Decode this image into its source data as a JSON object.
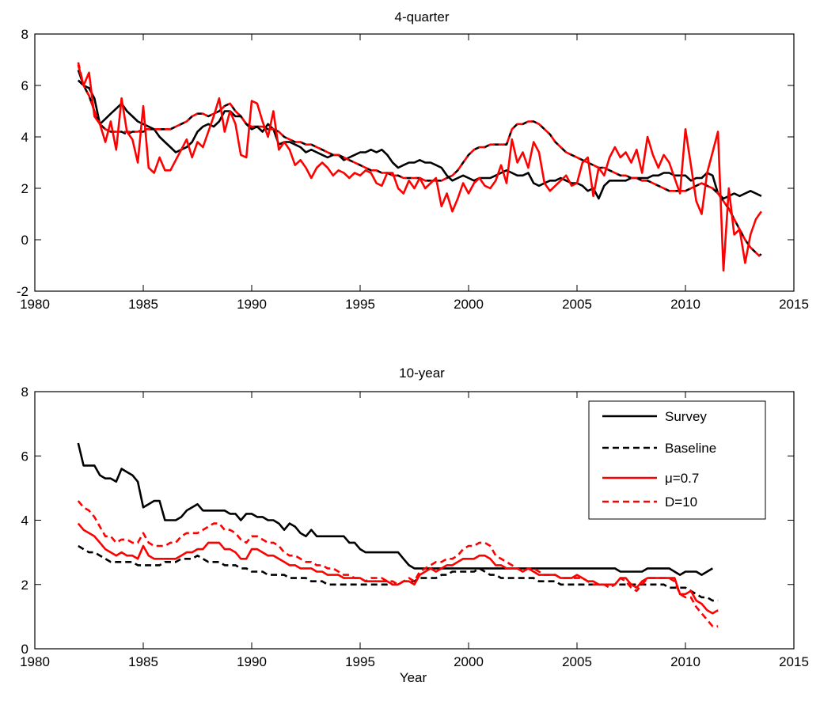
{
  "figure": {
    "xlabel": "Year"
  },
  "chart_data": [
    {
      "type": "line",
      "title": "4-quarter",
      "xlabel": "",
      "ylabel": "",
      "xlim": [
        1980,
        2015
      ],
      "ylim": [
        -2,
        8
      ],
      "xticks": [
        1980,
        1985,
        1990,
        1995,
        2000,
        2005,
        2010,
        2015
      ],
      "yticks": [
        -2,
        0,
        2,
        4,
        6,
        8
      ],
      "grid": false,
      "x_start": 1982.0,
      "x_step": 0.25,
      "series": [
        {
          "color": "#000000",
          "dash": "solid",
          "values": [
            6.6,
            6.0,
            5.9,
            5.5,
            4.5,
            4.7,
            4.9,
            5.1,
            5.3,
            5.0,
            4.8,
            4.6,
            4.5,
            4.4,
            4.3,
            4.0,
            3.8,
            3.6,
            3.4,
            3.5,
            3.6,
            3.8,
            4.2,
            4.4,
            4.5,
            4.4,
            4.6,
            5.0,
            5.0,
            4.8,
            4.8,
            4.5,
            4.3,
            4.4,
            4.2,
            4.5,
            4.3,
            3.7,
            3.8,
            3.8,
            3.7,
            3.6,
            3.4,
            3.5,
            3.4,
            3.3,
            3.2,
            3.3,
            3.3,
            3.1,
            3.2,
            3.3,
            3.4,
            3.4,
            3.5,
            3.4,
            3.5,
            3.3,
            3.0,
            2.8,
            2.9,
            3.0,
            3.0,
            3.1,
            3.0,
            3.0,
            2.9,
            2.8,
            2.5,
            2.3,
            2.4,
            2.5,
            2.4,
            2.3,
            2.4,
            2.4,
            2.4,
            2.5,
            2.6,
            2.7,
            2.6,
            2.5,
            2.5,
            2.6,
            2.2,
            2.1,
            2.2,
            2.3,
            2.3,
            2.4,
            2.3,
            2.2,
            2.2,
            2.1,
            1.9,
            2.0,
            1.6,
            2.1,
            2.3,
            2.3,
            2.3,
            2.3,
            2.4,
            2.4,
            2.4,
            2.4,
            2.5,
            2.5,
            2.6,
            2.6,
            2.5,
            2.5,
            2.5,
            2.3,
            2.4,
            2.4,
            2.6,
            2.5,
            1.8,
            1.6,
            1.7,
            1.8,
            1.7,
            1.8,
            1.9,
            1.8,
            1.7
          ]
        },
        {
          "color": "#000000",
          "dash": "dashed",
          "values": [
            6.2,
            6.0,
            5.6,
            5.0,
            4.5,
            4.3,
            4.2,
            4.2,
            4.2,
            4.1,
            4.2,
            4.2,
            4.2,
            4.3,
            4.3,
            4.3,
            4.3,
            4.3,
            4.4,
            4.5,
            4.6,
            4.8,
            4.9,
            4.9,
            4.8,
            4.9,
            5.0,
            5.2,
            5.3,
            5.0,
            4.8,
            4.5,
            4.4,
            4.4,
            4.4,
            4.3,
            4.3,
            4.2,
            4.0,
            3.9,
            3.8,
            3.8,
            3.7,
            3.7,
            3.6,
            3.5,
            3.4,
            3.3,
            3.3,
            3.2,
            3.1,
            3.0,
            2.9,
            2.8,
            2.7,
            2.7,
            2.6,
            2.6,
            2.5,
            2.5,
            2.4,
            2.4,
            2.4,
            2.4,
            2.3,
            2.3,
            2.3,
            2.3,
            2.4,
            2.5,
            2.7,
            3.0,
            3.3,
            3.5,
            3.6,
            3.6,
            3.7,
            3.7,
            3.7,
            3.7,
            4.3,
            4.5,
            4.5,
            4.6,
            4.6,
            4.5,
            4.3,
            4.1,
            3.8,
            3.6,
            3.4,
            3.3,
            3.2,
            3.1,
            3.0,
            2.9,
            2.8,
            2.8,
            2.7,
            2.6,
            2.5,
            2.5,
            2.4,
            2.4,
            2.3,
            2.3,
            2.2,
            2.1,
            2.0,
            1.9,
            1.9,
            1.9,
            1.9,
            2.0,
            2.1,
            2.2,
            2.1,
            2.0,
            1.8,
            1.5,
            1.2,
            0.8,
            0.4,
            0.0,
            -0.3,
            -0.5,
            -0.6
          ]
        },
        {
          "color": "#ff0000",
          "dash": "solid",
          "values": [
            6.8,
            6.0,
            6.5,
            4.8,
            4.5,
            3.8,
            4.6,
            3.5,
            5.5,
            4.2,
            3.9,
            3.0,
            5.2,
            2.8,
            2.6,
            3.2,
            2.7,
            2.7,
            3.1,
            3.5,
            3.9,
            3.2,
            3.8,
            3.6,
            4.2,
            4.8,
            5.5,
            4.2,
            5.0,
            4.5,
            3.3,
            3.2,
            5.4,
            5.3,
            4.6,
            4.0,
            5.0,
            3.5,
            3.8,
            3.5,
            2.9,
            3.1,
            2.8,
            2.4,
            2.8,
            3.0,
            2.8,
            2.5,
            2.7,
            2.6,
            2.4,
            2.6,
            2.5,
            2.7,
            2.6,
            2.2,
            2.1,
            2.6,
            2.6,
            2.0,
            1.8,
            2.3,
            2.0,
            2.4,
            2.0,
            2.2,
            2.4,
            1.3,
            1.8,
            1.1,
            1.6,
            2.2,
            1.8,
            2.2,
            2.4,
            2.1,
            2.0,
            2.3,
            2.9,
            2.2,
            3.9,
            3.0,
            3.4,
            2.8,
            3.8,
            3.4,
            2.2,
            1.9,
            2.1,
            2.3,
            2.5,
            2.1,
            2.2,
            3.0,
            3.2,
            1.7,
            2.8,
            2.5,
            3.2,
            3.6,
            3.2,
            3.4,
            3.0,
            3.5,
            2.6,
            4.0,
            3.3,
            2.8,
            3.3,
            3.0,
            2.4,
            1.8,
            4.3,
            2.9,
            1.5,
            1.0,
            2.6,
            3.4,
            4.2,
            -1.2,
            2.0,
            0.2,
            0.4,
            -0.9,
            0.2,
            0.8,
            1.1
          ]
        },
        {
          "color": "#ff0000",
          "dash": "dashed",
          "values": [
            6.9,
            6.0,
            5.6,
            5.0,
            4.5,
            4.3,
            4.2,
            4.2,
            4.2,
            4.2,
            4.2,
            4.2,
            4.3,
            4.3,
            4.3,
            4.3,
            4.3,
            4.3,
            4.4,
            4.5,
            4.6,
            4.8,
            4.9,
            4.9,
            4.8,
            4.9,
            5.0,
            5.2,
            5.3,
            5.0,
            4.8,
            4.5,
            4.4,
            4.4,
            4.4,
            4.3,
            4.3,
            4.2,
            4.0,
            3.9,
            3.8,
            3.8,
            3.7,
            3.7,
            3.6,
            3.5,
            3.4,
            3.3,
            3.3,
            3.2,
            3.1,
            3.0,
            2.9,
            2.8,
            2.7,
            2.7,
            2.6,
            2.6,
            2.5,
            2.5,
            2.4,
            2.4,
            2.4,
            2.4,
            2.3,
            2.3,
            2.3,
            2.3,
            2.4,
            2.5,
            2.7,
            3.0,
            3.3,
            3.5,
            3.6,
            3.6,
            3.7,
            3.7,
            3.7,
            3.7,
            4.3,
            4.5,
            4.5,
            4.6,
            4.6,
            4.5,
            4.3,
            4.1,
            3.8,
            3.6,
            3.4,
            3.3,
            3.2,
            3.1,
            3.0,
            2.9,
            2.8,
            2.8,
            2.7,
            2.6,
            2.5,
            2.5,
            2.4,
            2.4,
            2.3,
            2.3,
            2.2,
            2.1,
            2.0,
            1.9,
            1.9,
            1.9,
            1.9,
            2.0,
            2.1,
            2.2,
            2.1,
            2.0,
            1.8,
            1.5,
            1.2,
            0.8,
            0.4,
            0.0,
            -0.3,
            -0.5,
            -0.7
          ]
        }
      ]
    },
    {
      "type": "line",
      "title": "10-year",
      "xlabel": "Year",
      "ylabel": "",
      "xlim": [
        1980,
        2015
      ],
      "ylim": [
        0,
        8
      ],
      "xticks": [
        1980,
        1985,
        1990,
        1995,
        2000,
        2005,
        2010,
        2015
      ],
      "yticks": [
        0,
        2,
        4,
        6,
        8
      ],
      "grid": false,
      "legend_position": "top-right",
      "x_start": 1982.0,
      "x_step": 0.25,
      "series": [
        {
          "name": "Survey",
          "color": "#000000",
          "dash": "solid",
          "values": [
            6.4,
            5.7,
            5.7,
            5.7,
            5.4,
            5.3,
            5.3,
            5.2,
            5.6,
            5.5,
            5.4,
            5.2,
            4.4,
            4.5,
            4.6,
            4.6,
            4.0,
            4.0,
            4.0,
            4.1,
            4.3,
            4.4,
            4.5,
            4.3,
            4.3,
            4.3,
            4.3,
            4.3,
            4.2,
            4.2,
            4.0,
            4.2,
            4.2,
            4.1,
            4.1,
            4.0,
            4.0,
            3.9,
            3.7,
            3.9,
            3.8,
            3.6,
            3.5,
            3.7,
            3.5,
            3.5,
            3.5,
            3.5,
            3.5,
            3.5,
            3.3,
            3.3,
            3.1,
            3.0,
            3.0,
            3.0,
            3.0,
            3.0,
            3.0,
            3.0,
            2.8,
            2.6,
            2.5,
            2.5,
            2.5,
            2.5,
            2.5,
            2.5,
            2.5,
            2.5,
            2.5,
            2.5,
            2.5,
            2.5,
            2.5,
            2.5,
            2.5,
            2.5,
            2.5,
            2.5,
            2.5,
            2.5,
            2.5,
            2.5,
            2.5,
            2.5,
            2.5,
            2.5,
            2.5,
            2.5,
            2.5,
            2.5,
            2.5,
            2.5,
            2.5,
            2.5,
            2.5,
            2.5,
            2.5,
            2.5,
            2.4,
            2.4,
            2.4,
            2.4,
            2.4,
            2.5,
            2.5,
            2.5,
            2.5,
            2.5,
            2.4,
            2.3,
            2.4,
            2.4,
            2.4,
            2.3,
            2.4,
            2.5
          ]
        },
        {
          "name": "Baseline",
          "color": "#000000",
          "dash": "dashed",
          "values": [
            3.2,
            3.1,
            3.0,
            3.0,
            2.9,
            2.8,
            2.7,
            2.7,
            2.7,
            2.7,
            2.7,
            2.6,
            2.6,
            2.6,
            2.6,
            2.6,
            2.7,
            2.7,
            2.7,
            2.8,
            2.8,
            2.8,
            2.9,
            2.8,
            2.7,
            2.7,
            2.7,
            2.6,
            2.6,
            2.6,
            2.5,
            2.5,
            2.4,
            2.4,
            2.4,
            2.3,
            2.3,
            2.3,
            2.3,
            2.2,
            2.2,
            2.2,
            2.2,
            2.1,
            2.1,
            2.1,
            2.0,
            2.0,
            2.0,
            2.0,
            2.0,
            2.0,
            2.0,
            2.0,
            2.0,
            2.0,
            2.0,
            2.0,
            2.0,
            2.0,
            2.1,
            2.1,
            2.1,
            2.2,
            2.2,
            2.2,
            2.2,
            2.3,
            2.3,
            2.4,
            2.4,
            2.4,
            2.4,
            2.4,
            2.5,
            2.4,
            2.3,
            2.3,
            2.2,
            2.2,
            2.2,
            2.2,
            2.2,
            2.2,
            2.2,
            2.1,
            2.1,
            2.1,
            2.1,
            2.0,
            2.0,
            2.0,
            2.0,
            2.0,
            2.0,
            2.0,
            2.0,
            2.0,
            2.0,
            2.0,
            2.0,
            2.0,
            2.0,
            2.0,
            2.0,
            2.0,
            2.0,
            2.0,
            2.0,
            1.9,
            1.9,
            1.9,
            1.9,
            1.8,
            1.7,
            1.6,
            1.6,
            1.5,
            1.5
          ]
        },
        {
          "name": "μ=0.7",
          "color": "#ff0000",
          "dash": "solid",
          "values": [
            3.9,
            3.7,
            3.6,
            3.5,
            3.3,
            3.1,
            3.0,
            2.9,
            3.0,
            2.9,
            2.9,
            2.8,
            3.2,
            2.9,
            2.8,
            2.8,
            2.8,
            2.8,
            2.8,
            2.9,
            3.0,
            3.0,
            3.1,
            3.1,
            3.3,
            3.3,
            3.3,
            3.1,
            3.1,
            3.0,
            2.8,
            2.8,
            3.1,
            3.1,
            3.0,
            2.9,
            2.9,
            2.8,
            2.7,
            2.6,
            2.6,
            2.5,
            2.5,
            2.5,
            2.4,
            2.4,
            2.3,
            2.3,
            2.3,
            2.2,
            2.2,
            2.2,
            2.2,
            2.1,
            2.1,
            2.1,
            2.1,
            2.1,
            2.0,
            2.0,
            2.1,
            2.1,
            2.0,
            2.3,
            2.4,
            2.5,
            2.4,
            2.5,
            2.6,
            2.6,
            2.7,
            2.8,
            2.8,
            2.8,
            2.9,
            2.9,
            2.8,
            2.6,
            2.6,
            2.5,
            2.5,
            2.5,
            2.4,
            2.5,
            2.4,
            2.3,
            2.3,
            2.3,
            2.3,
            2.2,
            2.2,
            2.2,
            2.3,
            2.2,
            2.1,
            2.1,
            2.0,
            2.0,
            2.0,
            2.0,
            2.2,
            2.2,
            2.0,
            1.9,
            2.1,
            2.2,
            2.2,
            2.2,
            2.2,
            2.2,
            2.2,
            1.7,
            1.7,
            1.8,
            1.5,
            1.4,
            1.2,
            1.1,
            1.2
          ]
        },
        {
          "name": "D=10",
          "color": "#ff0000",
          "dash": "dashed",
          "values": [
            4.6,
            4.4,
            4.3,
            4.1,
            3.8,
            3.5,
            3.5,
            3.3,
            3.4,
            3.4,
            3.3,
            3.3,
            3.6,
            3.3,
            3.2,
            3.2,
            3.2,
            3.3,
            3.3,
            3.5,
            3.6,
            3.6,
            3.6,
            3.7,
            3.8,
            3.9,
            3.9,
            3.7,
            3.7,
            3.6,
            3.4,
            3.3,
            3.5,
            3.5,
            3.4,
            3.3,
            3.3,
            3.2,
            3.0,
            2.9,
            2.9,
            2.8,
            2.7,
            2.7,
            2.6,
            2.6,
            2.5,
            2.5,
            2.4,
            2.3,
            2.3,
            2.2,
            2.2,
            2.1,
            2.2,
            2.2,
            2.2,
            2.1,
            2.1,
            2.0,
            2.1,
            2.2,
            2.1,
            2.4,
            2.5,
            2.6,
            2.7,
            2.7,
            2.8,
            2.8,
            2.9,
            3.1,
            3.2,
            3.2,
            3.3,
            3.3,
            3.2,
            2.9,
            2.8,
            2.7,
            2.6,
            2.5,
            2.4,
            2.5,
            2.5,
            2.4,
            2.3,
            2.3,
            2.3,
            2.2,
            2.2,
            2.2,
            2.2,
            2.2,
            2.1,
            2.0,
            2.0,
            2.0,
            1.9,
            2.0,
            2.2,
            2.1,
            1.9,
            1.8,
            2.0,
            2.2,
            2.2,
            2.2,
            2.2,
            2.2,
            2.1,
            1.7,
            1.6,
            1.6,
            1.3,
            1.1,
            0.9,
            0.7,
            0.7
          ]
        }
      ]
    }
  ]
}
